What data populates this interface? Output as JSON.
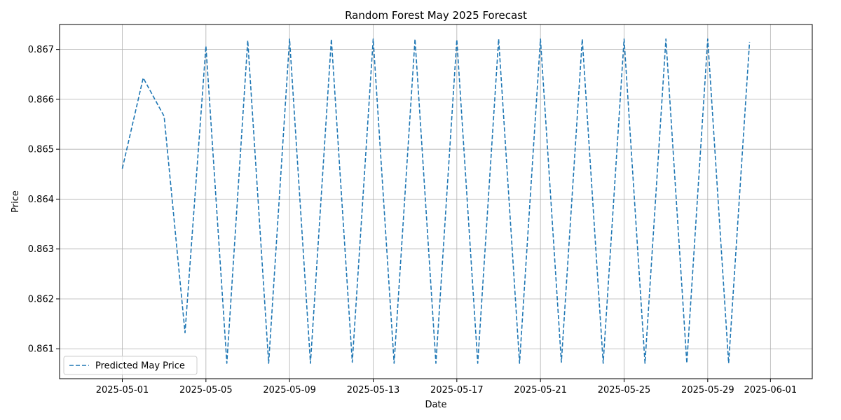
{
  "chart_data": {
    "type": "line",
    "title": "Random Forest May 2025 Forecast",
    "xlabel": "Date",
    "ylabel": "Price",
    "x_tick_labels": [
      "2025-05-01",
      "2025-05-05",
      "2025-05-09",
      "2025-05-13",
      "2025-05-17",
      "2025-05-21",
      "2025-05-25",
      "2025-05-29",
      "2025-06-01"
    ],
    "y_tick_labels": [
      "0.861",
      "0.862",
      "0.863",
      "0.864",
      "0.865",
      "0.866",
      "0.867"
    ],
    "y_ticks": [
      0.861,
      0.862,
      0.863,
      0.864,
      0.865,
      0.866,
      0.867
    ],
    "xlim": [
      "2025-04-28",
      "2025-06-03"
    ],
    "ylim": [
      0.8604,
      0.8675
    ],
    "grid": true,
    "legend_position": "lower-left",
    "series": [
      {
        "name": "Predicted May Price",
        "color": "#1f77b4",
        "line_style": "dashed",
        "x": [
          "2025-05-01",
          "2025-05-02",
          "2025-05-03",
          "2025-05-04",
          "2025-05-05",
          "2025-05-06",
          "2025-05-07",
          "2025-05-08",
          "2025-05-09",
          "2025-05-10",
          "2025-05-11",
          "2025-05-12",
          "2025-05-13",
          "2025-05-14",
          "2025-05-15",
          "2025-05-16",
          "2025-05-17",
          "2025-05-18",
          "2025-05-19",
          "2025-05-20",
          "2025-05-21",
          "2025-05-22",
          "2025-05-23",
          "2025-05-24",
          "2025-05-25",
          "2025-05-26",
          "2025-05-27",
          "2025-05-28",
          "2025-05-29",
          "2025-05-30",
          "2025-05-31"
        ],
        "y": [
          0.86461,
          0.86643,
          0.86566,
          0.86132,
          0.86707,
          0.86071,
          0.86718,
          0.86071,
          0.86721,
          0.86071,
          0.86721,
          0.86073,
          0.86721,
          0.86071,
          0.86721,
          0.86071,
          0.8672,
          0.86071,
          0.86721,
          0.86071,
          0.86721,
          0.86073,
          0.86721,
          0.86071,
          0.86721,
          0.86071,
          0.86721,
          0.86071,
          0.86721,
          0.86071,
          0.86715
        ]
      }
    ]
  }
}
